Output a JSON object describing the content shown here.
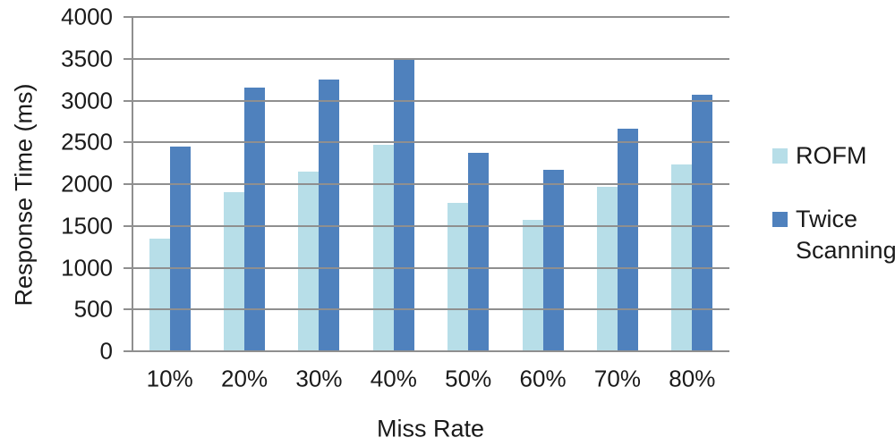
{
  "chart_data": {
    "type": "bar",
    "xlabel": "Miss Rate",
    "ylabel": "Response Time (ms)",
    "categories": [
      "10%",
      "20%",
      "30%",
      "40%",
      "50%",
      "60%",
      "70%",
      "80%"
    ],
    "series": [
      {
        "name": "ROFM",
        "color": "#B7DEE8",
        "values": [
          1350,
          1900,
          2150,
          2470,
          1780,
          1570,
          1970,
          2240
        ]
      },
      {
        "name": "Twice Scanning",
        "color": "#4F81BD",
        "values": [
          2450,
          3150,
          3250,
          3500,
          2370,
          2170,
          2660,
          3070
        ]
      }
    ],
    "ylim": [
      0,
      4000
    ],
    "ytick_step": 500,
    "grid": true,
    "legend_position": "right",
    "colors": {
      "gridline": "#8f8f8f",
      "text": "#1a1a1a",
      "background": "#ffffff"
    }
  }
}
